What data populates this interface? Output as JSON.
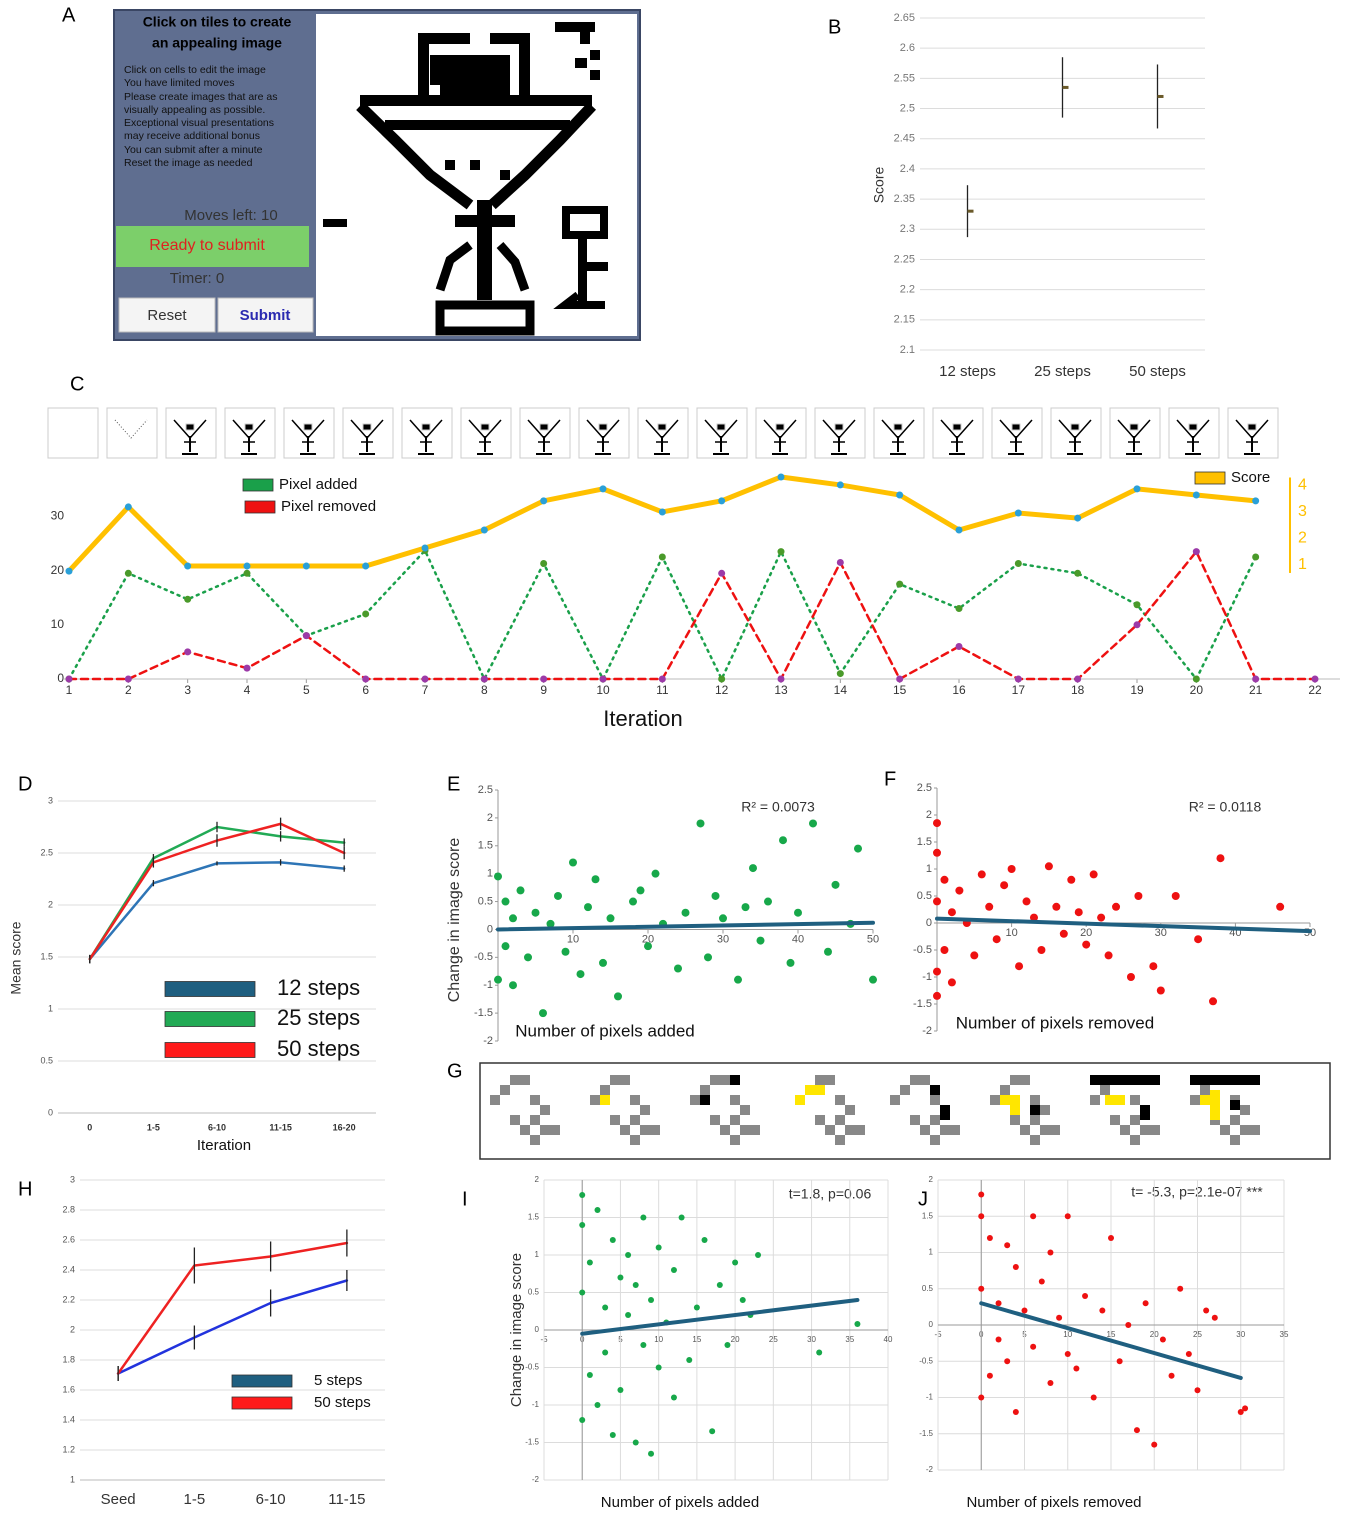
{
  "app_panel": {
    "label": "A",
    "title": [
      "Click on tiles to create",
      "an appealing image"
    ],
    "instructions": [
      "Click on cells to edit the image",
      "You have limited moves",
      "Please create images that are as",
      "visually appealing as possible.",
      "Exceptional visual presentations",
      "may receive additional bonus",
      "You can submit after a minute",
      "Reset the image as needed"
    ],
    "moves": "Moves left: 10",
    "status": "Ready to submit",
    "timer": "Timer: 0",
    "buttons": [
      "Reset",
      "Submit"
    ]
  },
  "examples_panel": {
    "label": "G"
  },
  "chart_data": [
    {
      "type": "errorbar",
      "panel": "B",
      "y_label": "Score",
      "categories": [
        "12 steps",
        "25 steps",
        "50 steps"
      ],
      "values": [
        2.33,
        2.535,
        2.52
      ],
      "errors": [
        0.043,
        0.05,
        0.053
      ],
      "color": "#6b5a2a",
      "ylim": [
        2.1,
        2.65
      ],
      "yticks": [
        2.1,
        2.15,
        2.2,
        2.25,
        2.3,
        2.35,
        2.4,
        2.45,
        2.5,
        2.55,
        2.6,
        2.65
      ],
      "grid": true
    },
    {
      "type": "line",
      "panel": "C",
      "x_label": "Iteration",
      "x": [
        1,
        2,
        3,
        4,
        5,
        6,
        7,
        8,
        9,
        10,
        11,
        12,
        13,
        14,
        15,
        16,
        17,
        18,
        19,
        20,
        21,
        22
      ],
      "xlim": [
        1,
        22
      ],
      "xticks": [
        1,
        2,
        3,
        4,
        5,
        6,
        7,
        8,
        9,
        10,
        11,
        12,
        13,
        14,
        15,
        16,
        17,
        18,
        19,
        20,
        21,
        22
      ],
      "ylim": [
        0,
        38
      ],
      "yticks": [
        0,
        10,
        20,
        30
      ],
      "y2lim": [
        -3.3,
        4.47
      ],
      "y2ticks": [
        1,
        2,
        3,
        4
      ],
      "grid": false,
      "markers": true,
      "series": [
        {
          "name": "Pixel added",
          "color": "#1aa04a",
          "marker_color": "#4a9a2a",
          "style": "dotted",
          "values": [
            0,
            19.5,
            14.7,
            19.5,
            8,
            12,
            23.7,
            0,
            21.3,
            0,
            22.5,
            0,
            23.5,
            1,
            17.5,
            13,
            21.3,
            19.5,
            13.7,
            0,
            22.5,
            null
          ]
        },
        {
          "name": "Pixel removed",
          "color": "#ee1111",
          "marker_color": "#9c3aa8",
          "style": "dashed",
          "values": [
            0,
            0,
            5,
            2,
            8,
            0,
            0,
            0,
            0,
            0,
            0,
            19.5,
            0,
            21.5,
            0,
            6,
            0,
            0,
            10,
            23.5,
            0,
            0
          ]
        },
        {
          "name": "Score",
          "color": "#ffc000",
          "marker_color": "#2aa0d8",
          "style": "solid",
          "axis": "y2",
          "values": [
            0.77,
            3.19,
            0.96,
            0.96,
            0.96,
            0.96,
            1.64,
            2.32,
            3.42,
            3.87,
            3.0,
            3.42,
            4.32,
            4.02,
            3.64,
            2.32,
            2.96,
            2.77,
            3.87,
            3.64,
            3.42,
            null
          ]
        }
      ]
    },
    {
      "type": "line",
      "panel": "D",
      "y_label": "Mean score",
      "x_label": "Iteration",
      "categories": [
        "0",
        "1-5",
        "6-10",
        "11-15",
        "16-20"
      ],
      "ylim": [
        0,
        3
      ],
      "yticks": [
        0,
        0.5,
        1,
        1.5,
        2,
        2.5,
        3
      ],
      "grid": true,
      "series": [
        {
          "name": "12 steps",
          "color": "#2e75b6",
          "legend_color": "#1f5f80",
          "values": [
            1.48,
            2.21,
            2.4,
            2.41,
            2.35
          ],
          "errors": [
            0.04,
            0.03,
            0.02,
            0.03,
            0.03
          ]
        },
        {
          "name": "25 steps",
          "color": "#22aa55",
          "legend_color": "#22aa55",
          "values": [
            1.48,
            2.45,
            2.75,
            2.66,
            2.6
          ],
          "errors": [
            0.04,
            0.04,
            0.05,
            0.05,
            0.04
          ]
        },
        {
          "name": "50 steps",
          "color": "#ee2222",
          "legend_color": "#ff1a1a",
          "values": [
            1.48,
            2.41,
            2.62,
            2.78,
            2.5
          ],
          "errors": [
            0.04,
            0.05,
            0.06,
            0.06,
            0.06
          ]
        }
      ]
    },
    {
      "type": "scatter",
      "panel": "E",
      "y_label": "Change in  image score",
      "x_label": "Number of pixels added",
      "annotation": "R² = 0.0073",
      "color": "#17a84a",
      "trend_color": "#1f5f80",
      "xlim": [
        0,
        50
      ],
      "xticks": [
        10,
        20,
        30,
        40,
        50
      ],
      "ylim": [
        -2,
        2.5
      ],
      "yticks": [
        -2,
        -1.5,
        -1,
        -0.5,
        0,
        0.5,
        1,
        1.5,
        2,
        2.5
      ],
      "grid": false,
      "x": [
        0,
        0,
        1,
        1,
        2,
        2,
        3,
        4,
        5,
        6,
        7,
        8,
        9,
        10,
        11,
        12,
        13,
        14,
        15,
        16,
        18,
        19,
        20,
        21,
        22,
        24,
        25,
        27,
        28,
        29,
        30,
        32,
        33,
        34,
        35,
        36,
        38,
        39,
        40,
        42,
        44,
        45,
        47,
        48,
        50
      ],
      "values": [
        0.95,
        -0.9,
        0.5,
        -0.3,
        0.2,
        -1,
        0.7,
        -0.5,
        0.3,
        -1.5,
        0.1,
        0.6,
        -0.4,
        1.2,
        -0.8,
        0.4,
        0.9,
        -0.6,
        0.2,
        -1.2,
        0.5,
        0.7,
        -0.3,
        1.0,
        0.1,
        -0.7,
        0.3,
        1.9,
        -0.5,
        0.6,
        0.2,
        -0.9,
        0.4,
        1.1,
        -0.2,
        0.5,
        1.6,
        -0.6,
        0.3,
        1.9,
        -0.4,
        0.8,
        0.1,
        1.45,
        -0.9
      ],
      "trend": {
        "x": [
          0,
          50
        ],
        "y": [
          0,
          0.12
        ]
      }
    },
    {
      "type": "scatter",
      "panel": "F",
      "x_label": "Number of pixels removed",
      "annotation": "R² = 0.0118",
      "color": "#ee1111",
      "trend_color": "#1f5f80",
      "xlim": [
        0,
        50
      ],
      "xticks": [
        10,
        20,
        30,
        40,
        50
      ],
      "ylim": [
        -2,
        2.5
      ],
      "yticks": [
        -2,
        -1.5,
        -1,
        -0.5,
        0,
        0.5,
        1,
        1.5,
        2,
        2.5
      ],
      "grid": false,
      "x": [
        0,
        0,
        0,
        0,
        0,
        1,
        1,
        2,
        2,
        3,
        4,
        5,
        6,
        7,
        8,
        9,
        10,
        11,
        12,
        13,
        14,
        15,
        16,
        17,
        18,
        19,
        20,
        21,
        22,
        23,
        24,
        26,
        27,
        29,
        30,
        32,
        35,
        37,
        38,
        46
      ],
      "values": [
        1.85,
        1.3,
        -0.9,
        -1.35,
        0.4,
        0.8,
        -0.5,
        0.2,
        -1.1,
        0.6,
        0.0,
        -0.6,
        0.9,
        0.3,
        -0.3,
        0.7,
        1.0,
        -0.8,
        0.4,
        0.1,
        -0.5,
        1.05,
        0.3,
        -0.2,
        0.8,
        0.2,
        -0.4,
        0.9,
        0.1,
        -0.6,
        0.3,
        -1.0,
        0.5,
        -0.8,
        -1.25,
        0.5,
        -0.3,
        -1.45,
        1.2,
        0.3
      ],
      "trend": {
        "x": [
          0,
          50
        ],
        "y": [
          0.08,
          -0.15
        ]
      }
    },
    {
      "type": "line",
      "panel": "H",
      "categories": [
        "Seed",
        "1-5",
        "6-10",
        "11-15"
      ],
      "ylim": [
        1,
        3
      ],
      "yticks": [
        1,
        1.2,
        1.4,
        1.6,
        1.8,
        2,
        2.2,
        2.4,
        2.6,
        2.8,
        3
      ],
      "grid": true,
      "series": [
        {
          "name": "5 steps",
          "color": "#2233dd",
          "legend_color": "#1f5f80",
          "values": [
            1.71,
            1.95,
            2.18,
            2.33
          ],
          "errors": [
            0.05,
            0.08,
            0.09,
            0.07
          ]
        },
        {
          "name": "50 steps",
          "color": "#ee2222",
          "legend_color": "#ff1a1a",
          "values": [
            1.71,
            2.43,
            2.49,
            2.58
          ],
          "errors": [
            0.05,
            0.12,
            0.1,
            0.09
          ]
        }
      ]
    },
    {
      "type": "scatter",
      "panel": "I",
      "y_label": "Change in  image score",
      "x_label": "Number of pixels added",
      "annotation": "t=1.8, p=0.06",
      "color": "#17a84a",
      "trend_color": "#1f5f80",
      "xlim": [
        -5,
        40
      ],
      "xticks": [
        -5,
        0,
        5,
        10,
        15,
        20,
        25,
        30,
        35,
        40
      ],
      "ylim": [
        -2,
        2
      ],
      "yticks": [
        -2,
        -1.5,
        -1,
        -0.5,
        0,
        0.5,
        1,
        1.5,
        2
      ],
      "grid": "both",
      "x": [
        0,
        0,
        0,
        0,
        1,
        1,
        2,
        2,
        3,
        3,
        4,
        4,
        5,
        5,
        6,
        6,
        7,
        7,
        8,
        8,
        9,
        9,
        10,
        10,
        11,
        12,
        12,
        13,
        14,
        15,
        16,
        17,
        18,
        19,
        20,
        21,
        22,
        23,
        31,
        36
      ],
      "values": [
        1.8,
        -1.2,
        0.5,
        1.4,
        -0.6,
        0.9,
        1.6,
        -1.0,
        0.3,
        -0.3,
        1.2,
        -1.4,
        0.7,
        -0.8,
        0.2,
        1.0,
        -1.5,
        0.6,
        -0.2,
        1.5,
        -1.65,
        0.4,
        -0.5,
        1.1,
        0.1,
        -0.9,
        0.8,
        1.5,
        -0.4,
        0.3,
        1.2,
        -1.35,
        0.6,
        -0.2,
        0.9,
        0.4,
        0.2,
        1.0,
        -0.3,
        0.08
      ],
      "trend": {
        "x": [
          0,
          36
        ],
        "y": [
          -0.05,
          0.4
        ]
      }
    },
    {
      "type": "scatter",
      "panel": "J",
      "x_label": "Number of pixels removed",
      "annotation": "t= -5.3, p=2.1e-07 ***",
      "color": "#ee1111",
      "trend_color": "#1f5f80",
      "xlim": [
        -5,
        35
      ],
      "xticks": [
        -5,
        0,
        5,
        10,
        15,
        20,
        25,
        30,
        35
      ],
      "ylim": [
        -2,
        2
      ],
      "yticks": [
        -2,
        -1.5,
        -1,
        -0.5,
        0,
        0.5,
        1,
        1.5,
        2
      ],
      "grid": "both",
      "x": [
        0,
        0,
        0,
        0,
        1,
        1,
        2,
        2,
        3,
        3,
        4,
        4,
        5,
        6,
        6,
        7,
        8,
        8,
        9,
        10,
        10,
        11,
        12,
        13,
        14,
        15,
        16,
        17,
        18,
        19,
        20,
        21,
        22,
        23,
        24,
        25,
        26,
        27,
        30,
        30.5
      ],
      "values": [
        1.8,
        1.5,
        -1.0,
        0.5,
        1.2,
        -0.7,
        0.3,
        -0.2,
        1.1,
        -0.5,
        0.8,
        -1.2,
        0.2,
        1.5,
        -0.3,
        0.6,
        -0.8,
        1.0,
        0.1,
        -0.4,
        1.5,
        -0.6,
        0.4,
        -1.0,
        0.2,
        1.2,
        -0.5,
        0.0,
        -1.45,
        0.3,
        -1.65,
        -0.2,
        -0.7,
        0.5,
        -0.4,
        -0.9,
        0.2,
        0.1,
        -1.2,
        -1.15
      ],
      "trend": {
        "x": [
          0,
          30
        ],
        "y": [
          0.3,
          -0.73
        ]
      }
    }
  ]
}
